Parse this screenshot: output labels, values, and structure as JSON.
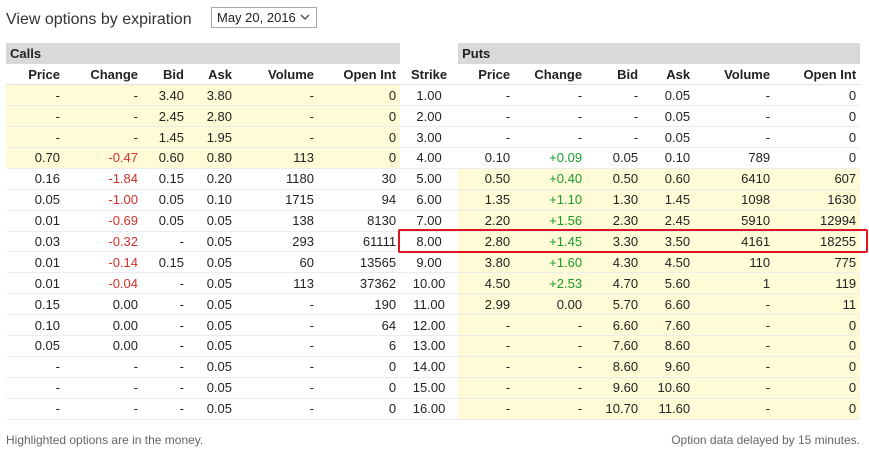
{
  "header": {
    "title": "View options by expiration",
    "expiration_selected": "May 20, 2016"
  },
  "groups": {
    "calls": "Calls",
    "puts": "Puts"
  },
  "columns": {
    "calls": [
      "Price",
      "Change",
      "Bid",
      "Ask",
      "Volume",
      "Open Int"
    ],
    "strike": "Strike",
    "puts": [
      "Price",
      "Change",
      "Bid",
      "Ask",
      "Volume",
      "Open Int"
    ]
  },
  "rows": [
    {
      "call": [
        "-",
        "-",
        "3.40",
        "3.80",
        "-",
        "0"
      ],
      "strike": "1.00",
      "put": [
        "-",
        "-",
        "-",
        "0.05",
        "-",
        "0"
      ],
      "call_itm": true,
      "put_itm": false
    },
    {
      "call": [
        "-",
        "-",
        "2.45",
        "2.80",
        "-",
        "0"
      ],
      "strike": "2.00",
      "put": [
        "-",
        "-",
        "-",
        "0.05",
        "-",
        "0"
      ],
      "call_itm": true,
      "put_itm": false
    },
    {
      "call": [
        "-",
        "-",
        "1.45",
        "1.95",
        "-",
        "0"
      ],
      "strike": "3.00",
      "put": [
        "-",
        "-",
        "-",
        "0.05",
        "-",
        "0"
      ],
      "call_itm": true,
      "put_itm": false
    },
    {
      "call": [
        "0.70",
        "-0.47",
        "0.60",
        "0.80",
        "113",
        "0"
      ],
      "strike": "4.00",
      "put": [
        "0.10",
        "+0.09",
        "0.05",
        "0.10",
        "789",
        "0"
      ],
      "call_itm": true,
      "put_itm": false
    },
    {
      "call": [
        "0.16",
        "-1.84",
        "0.15",
        "0.20",
        "1180",
        "30"
      ],
      "strike": "5.00",
      "put": [
        "0.50",
        "+0.40",
        "0.50",
        "0.60",
        "6410",
        "607"
      ],
      "call_itm": false,
      "put_itm": true
    },
    {
      "call": [
        "0.05",
        "-1.00",
        "0.05",
        "0.10",
        "1715",
        "94"
      ],
      "strike": "6.00",
      "put": [
        "1.35",
        "+1.10",
        "1.30",
        "1.45",
        "1098",
        "1630"
      ],
      "call_itm": false,
      "put_itm": true
    },
    {
      "call": [
        "0.01",
        "-0.69",
        "0.05",
        "0.05",
        "138",
        "8130"
      ],
      "strike": "7.00",
      "put": [
        "2.20",
        "+1.56",
        "2.30",
        "2.45",
        "5910",
        "12994"
      ],
      "call_itm": false,
      "put_itm": true
    },
    {
      "call": [
        "0.03",
        "-0.32",
        "-",
        "0.05",
        "293",
        "61111"
      ],
      "strike": "8.00",
      "put": [
        "2.80",
        "+1.45",
        "3.30",
        "3.50",
        "4161",
        "18255"
      ],
      "call_itm": false,
      "put_itm": true
    },
    {
      "call": [
        "0.01",
        "-0.14",
        "0.15",
        "0.05",
        "60",
        "13565"
      ],
      "strike": "9.00",
      "put": [
        "3.80",
        "+1.60",
        "4.30",
        "4.50",
        "110",
        "775"
      ],
      "call_itm": false,
      "put_itm": true
    },
    {
      "call": [
        "0.01",
        "-0.04",
        "-",
        "0.05",
        "113",
        "37362"
      ],
      "strike": "10.00",
      "put": [
        "4.50",
        "+2.53",
        "4.70",
        "5.60",
        "1",
        "119"
      ],
      "call_itm": false,
      "put_itm": true
    },
    {
      "call": [
        "0.15",
        "0.00",
        "-",
        "0.05",
        "-",
        "190"
      ],
      "strike": "11.00",
      "put": [
        "2.99",
        "0.00",
        "5.70",
        "6.60",
        "-",
        "11"
      ],
      "call_itm": false,
      "put_itm": true
    },
    {
      "call": [
        "0.10",
        "0.00",
        "-",
        "0.05",
        "-",
        "64"
      ],
      "strike": "12.00",
      "put": [
        "-",
        "-",
        "6.60",
        "7.60",
        "-",
        "0"
      ],
      "call_itm": false,
      "put_itm": true
    },
    {
      "call": [
        "0.05",
        "0.00",
        "-",
        "0.05",
        "-",
        "6"
      ],
      "strike": "13.00",
      "put": [
        "-",
        "-",
        "7.60",
        "8.60",
        "-",
        "0"
      ],
      "call_itm": false,
      "put_itm": true
    },
    {
      "call": [
        "-",
        "-",
        "-",
        "0.05",
        "-",
        "0"
      ],
      "strike": "14.00",
      "put": [
        "-",
        "-",
        "8.60",
        "9.60",
        "-",
        "0"
      ],
      "call_itm": false,
      "put_itm": true
    },
    {
      "call": [
        "-",
        "-",
        "-",
        "0.05",
        "-",
        "0"
      ],
      "strike": "15.00",
      "put": [
        "-",
        "-",
        "9.60",
        "10.60",
        "-",
        "0"
      ],
      "call_itm": false,
      "put_itm": true
    },
    {
      "call": [
        "-",
        "-",
        "-",
        "0.05",
        "-",
        "0"
      ],
      "strike": "16.00",
      "put": [
        "-",
        "-",
        "10.70",
        "11.60",
        "-",
        "0"
      ],
      "call_itm": false,
      "put_itm": true
    }
  ],
  "footer": {
    "left": "Highlighted options are in the money.",
    "right": "Option data delayed by 15 minutes."
  },
  "colors": {
    "itm_background": "#fffbd6",
    "negative": "#d0312d",
    "positive": "#1a9b2c",
    "highlight_border": "#e0141e",
    "group_header": "#d9d9d9"
  },
  "icons": {
    "dropdown": "chevron-down-icon"
  }
}
